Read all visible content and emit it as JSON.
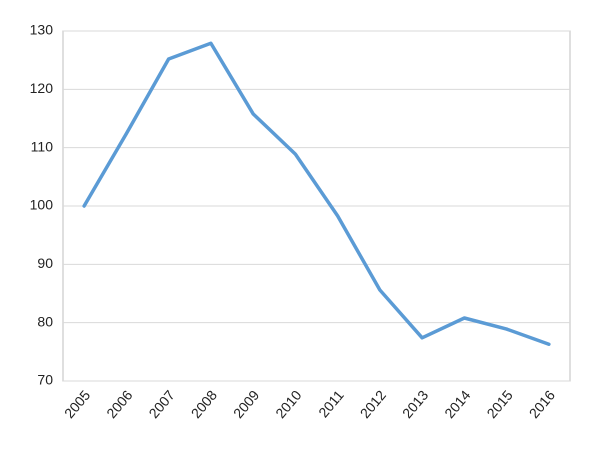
{
  "chart_data": {
    "type": "line",
    "categories": [
      "2005",
      "2006",
      "2007",
      "2008",
      "2009",
      "2010",
      "2011",
      "2012",
      "2013",
      "2014",
      "2015",
      "2016"
    ],
    "values": [
      100,
      112.4,
      125.2,
      127.9,
      115.8,
      108.9,
      98.3,
      85.6,
      77.4,
      80.8,
      78.9,
      76.3
    ],
    "color": "#5b9bd5",
    "ylim": [
      70,
      130
    ],
    "yticks": [
      70,
      80,
      90,
      100,
      110,
      120,
      130
    ],
    "grid": true
  }
}
